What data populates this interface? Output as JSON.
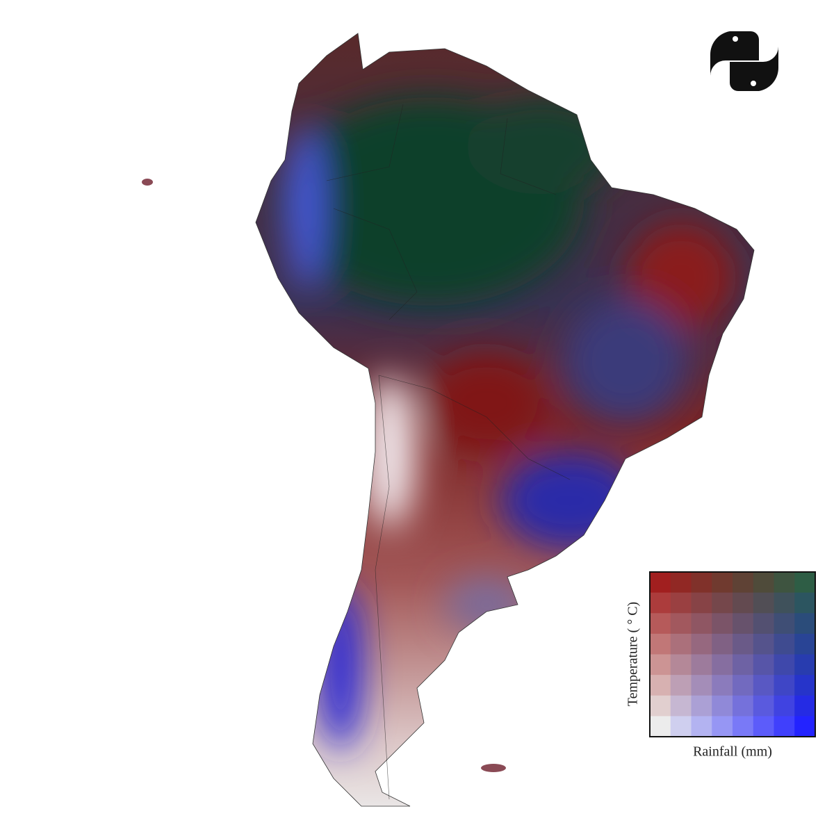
{
  "legend": {
    "x_label": "Rainfall (mm)",
    "y_label": "Temperature ( ° C)",
    "cells": 8,
    "corner_colors": {
      "top_left": "#a11f1f",
      "top_right": "#2e5d45",
      "bottom_left": "#ececec",
      "bottom_right": "#2323ff"
    }
  }
}
